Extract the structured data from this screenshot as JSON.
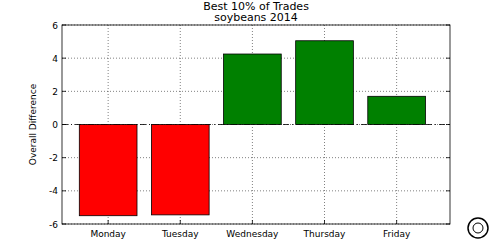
{
  "chart_data": {
    "type": "bar",
    "title": "Best 10% of Trades",
    "subtitle": "soybeans 2014",
    "y_label": "Overall Difference",
    "categories": [
      "Monday",
      "Tuesday",
      "Wednesday",
      "Thursday",
      "Friday"
    ],
    "values": [
      -5.5,
      -5.45,
      4.25,
      5.05,
      1.7
    ],
    "colors": [
      "#ff0000",
      "#ff0000",
      "#008000",
      "#008000",
      "#008000"
    ],
    "ylim": [
      -6,
      6
    ],
    "yticks": [
      -6,
      -4,
      -2,
      0,
      2,
      4,
      6
    ],
    "grid": true
  }
}
